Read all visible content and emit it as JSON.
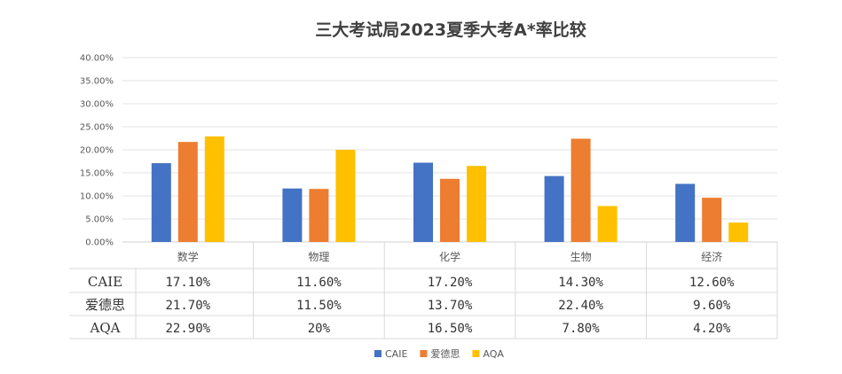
{
  "chart_data": {
    "type": "bar",
    "title": "三大考试局2023夏季大考A*率比较",
    "categories": [
      "数学",
      "物理",
      "化学",
      "生物",
      "经济"
    ],
    "ylim": [
      0,
      40
    ],
    "y_ticks": [
      "0.00%",
      "5.00%",
      "10.00%",
      "15.00%",
      "20.00%",
      "25.00%",
      "30.00%",
      "35.00%",
      "40.00%"
    ],
    "grid": true,
    "legend": "bottom",
    "series": [
      {
        "name": "CAIE",
        "color": "#4472C4",
        "values": [
          17.1,
          11.6,
          17.2,
          14.3,
          12.6
        ]
      },
      {
        "name": "爱德思",
        "color": "#ED7D31",
        "values": [
          21.7,
          11.5,
          13.7,
          22.4,
          9.6
        ]
      },
      {
        "name": "AQA",
        "color": "#FFC000",
        "values": [
          22.9,
          20,
          16.5,
          7.8,
          4.2
        ]
      }
    ],
    "table": [
      {
        "label": "CAIE",
        "cells": [
          "17.10%",
          "11.60%",
          "17.20%",
          "14.30%",
          "12.60%"
        ]
      },
      {
        "label": "爱德思",
        "cells": [
          "21.70%",
          "11.50%",
          "13.70%",
          "22.40%",
          "9.60%"
        ]
      },
      {
        "label": "AQA",
        "cells": [
          "22.90%",
          "20%",
          "16.50%",
          "7.80%",
          "4.20%"
        ]
      }
    ]
  }
}
